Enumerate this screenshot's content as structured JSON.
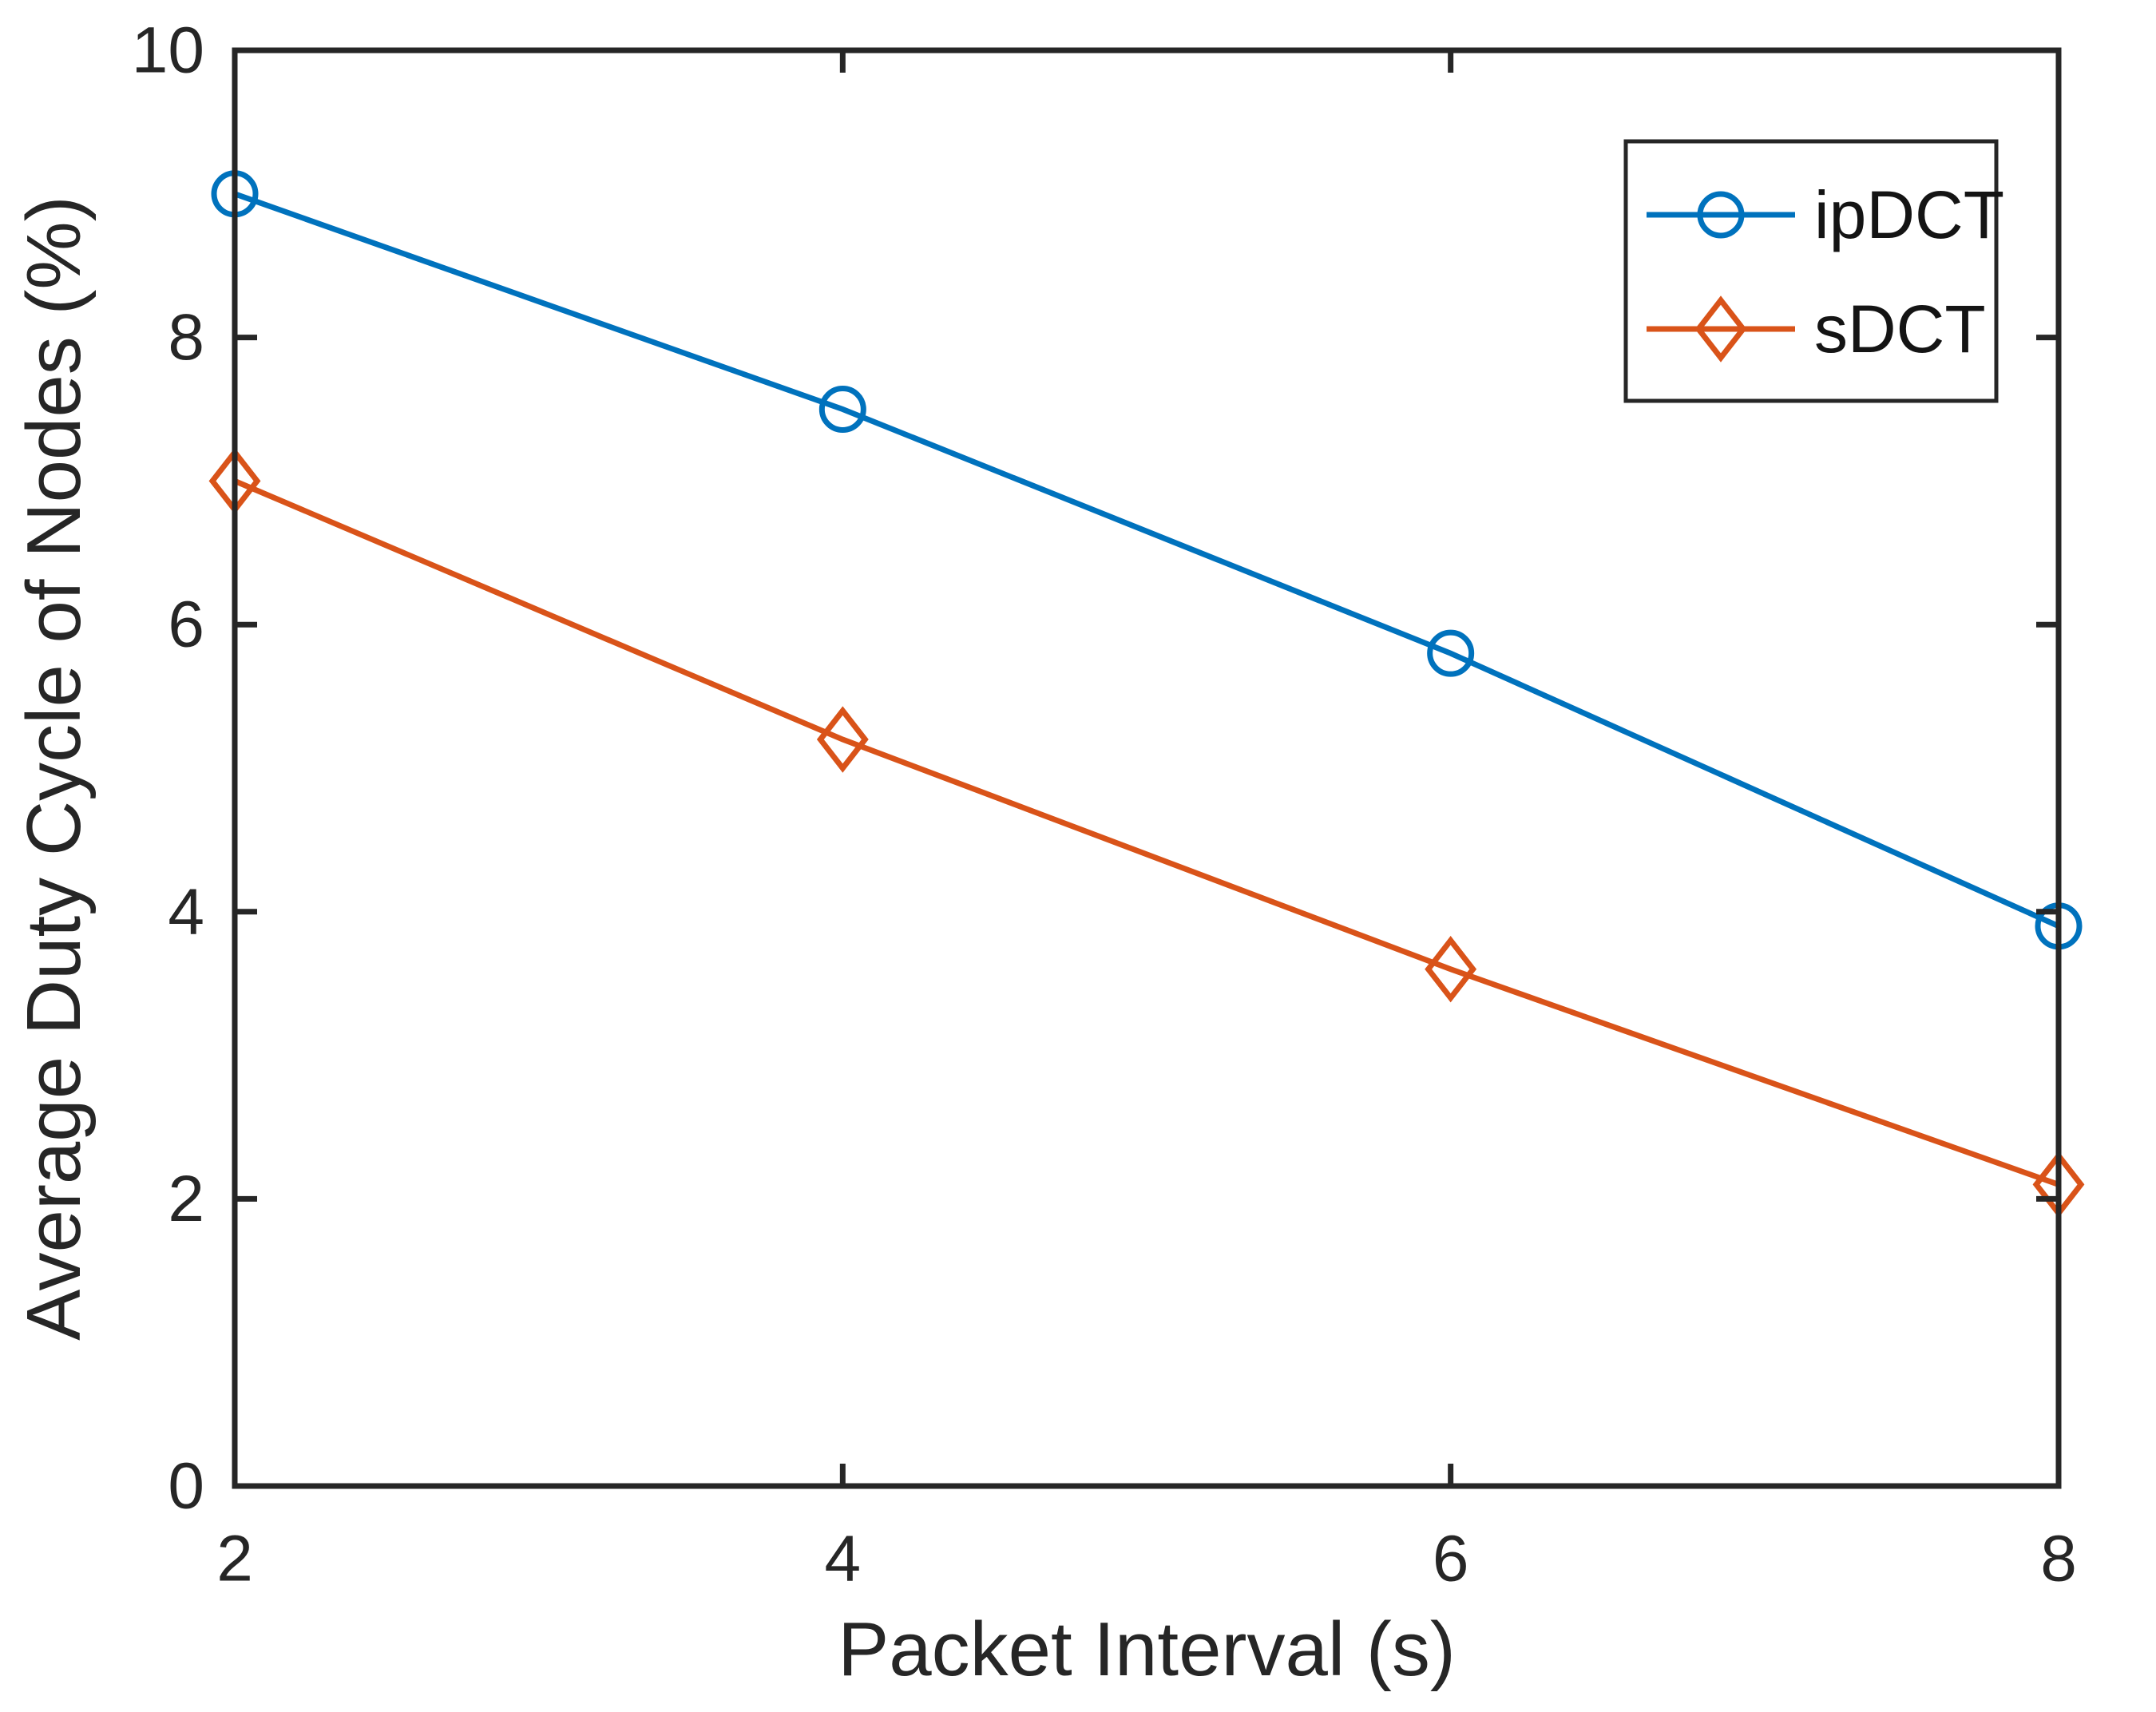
{
  "chart_data": {
    "type": "line",
    "title": "",
    "xlabel": "Packet Interval (s)",
    "ylabel": "Average Duty Cycle of Nodes (%)",
    "x": [
      2,
      4,
      6,
      8
    ],
    "xlim": [
      2,
      8
    ],
    "ylim": [
      0,
      10
    ],
    "xticks": [
      "2",
      "4",
      "6",
      "8"
    ],
    "yticks": [
      "0",
      "2",
      "4",
      "6",
      "8",
      "10"
    ],
    "grid": false,
    "legend_position": "top-right",
    "axis_color": "#262626",
    "background": "#FFFFFF",
    "series": [
      {
        "name": "ipDCT",
        "marker": "circle",
        "color": "#0072BD",
        "values": [
          9.0,
          7.5,
          5.8,
          3.9
        ]
      },
      {
        "name": "sDCT",
        "marker": "diamond",
        "color": "#D95319",
        "values": [
          7.0,
          5.2,
          3.6,
          2.1
        ]
      }
    ]
  }
}
